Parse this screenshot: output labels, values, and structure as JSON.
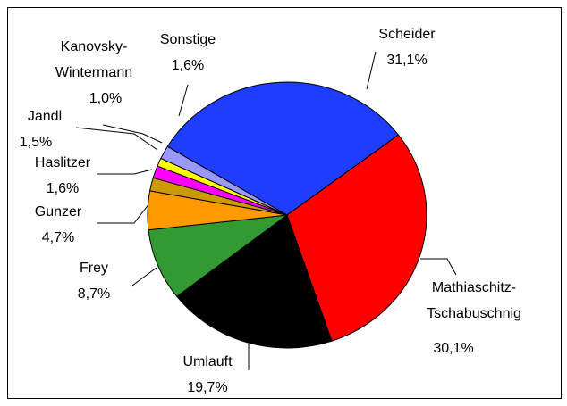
{
  "chart_data": {
    "type": "pie",
    "categories": [
      "Scheider",
      "Mathiaschitz-\nTschabuschnig",
      "Umlauft",
      "Frey",
      "Gunzer",
      "Haslitzer",
      "Jandl",
      "Kanovsky-\nWintermann",
      "Sonstige"
    ],
    "values": [
      31.1,
      30.1,
      19.7,
      8.7,
      4.7,
      1.6,
      1.5,
      1.0,
      1.6
    ],
    "value_labels": [
      "31,1%",
      "30,1%",
      "19,7%",
      "8,7%",
      "4,7%",
      "1,6%",
      "1,5%",
      "1,0%",
      "1,6%"
    ],
    "colors": [
      "#1f3dff",
      "#ff0000",
      "#000000",
      "#339933",
      "#ff9900",
      "#cc9900",
      "#ff00ff",
      "#ffff00",
      "#9999ff"
    ]
  }
}
